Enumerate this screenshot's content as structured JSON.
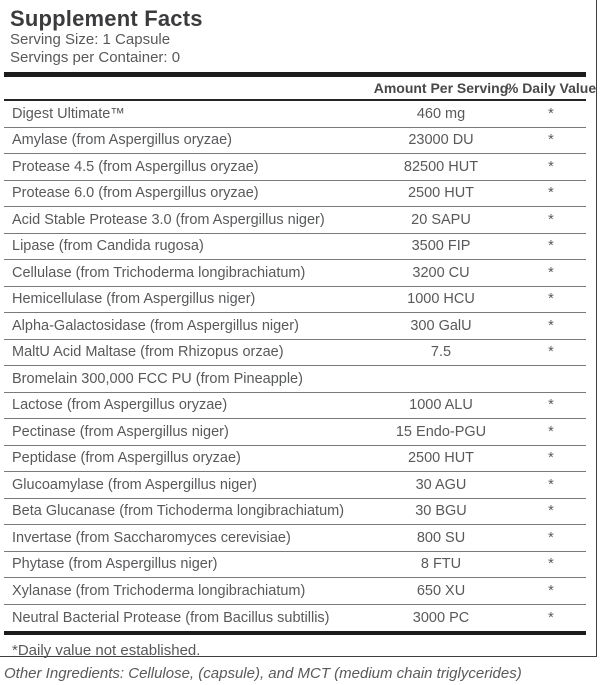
{
  "label": {
    "title": "Supplement Facts",
    "serving_size": "Serving Size: 1 Capsule",
    "servings_per_container": "Servings per Container: 0",
    "columns": {
      "amount_header": "Amount Per Serving",
      "daily_value_header": "% Daily Value"
    },
    "rows": [
      {
        "name": "Digest Ultimate™",
        "amount": "460 mg",
        "dv": "*"
      },
      {
        "name": "Amylase (from Aspergillus oryzae)",
        "amount": "23000 DU",
        "dv": "*"
      },
      {
        "name": "Protease 4.5 (from Aspergillus oryzae)",
        "amount": "82500 HUT",
        "dv": "*"
      },
      {
        "name": "Protease 6.0 (from Aspergillus oryzae)",
        "amount": "2500 HUT",
        "dv": "*"
      },
      {
        "name": "Acid Stable Protease 3.0 (from Aspergillus niger)",
        "amount": "20 SAPU",
        "dv": "*"
      },
      {
        "name": "Lipase (from Candida rugosa)",
        "amount": "3500 FIP",
        "dv": "*"
      },
      {
        "name": "Cellulase (from Trichoderma longibrachiatum)",
        "amount": "3200 CU",
        "dv": "*"
      },
      {
        "name": "Hemicellulase (from Aspergillus niger)",
        "amount": "1000 HCU",
        "dv": "*"
      },
      {
        "name": "Alpha-Galactosidase (from Aspergillus niger)",
        "amount": "300 GalU",
        "dv": "*"
      },
      {
        "name": "MaltU Acid Maltase (from Rhizopus orzae)",
        "amount": "7.5",
        "dv": "*"
      },
      {
        "name": "Bromelain 300,000 FCC PU (from Pineapple)",
        "amount": "",
        "dv": ""
      },
      {
        "name": "Lactose (from Aspergillus oryzae)",
        "amount": "1000 ALU",
        "dv": "*"
      },
      {
        "name": "Pectinase (from Aspergillus niger)",
        "amount": "15 Endo-PGU",
        "dv": "*"
      },
      {
        "name": "Peptidase (from Aspergillus oryzae)",
        "amount": "2500 HUT",
        "dv": "*"
      },
      {
        "name": "Glucoamylase (from Aspergillus niger)",
        "amount": "30 AGU",
        "dv": "*"
      },
      {
        "name": "Beta Glucanase (from Tichoderma longibrachiatum)",
        "amount": "30 BGU",
        "dv": "*"
      },
      {
        "name": "Invertase (from Saccharomyces cerevisiae)",
        "amount": "800 SU",
        "dv": "*"
      },
      {
        "name": "Phytase (from Aspergillus niger)",
        "amount": "8 FTU",
        "dv": "*"
      },
      {
        "name": "Xylanase (from Trichoderma longibrachiatum)",
        "amount": "650 XU",
        "dv": "*"
      },
      {
        "name": "Neutral Bacterial Protease (from Bacillus subtillis)",
        "amount": "3000 PC",
        "dv": "*"
      }
    ],
    "footnote": "*Daily value not established.",
    "other_ingredients": "Other Ingredients: Cellulose, (capsule), and MCT (medium chain triglycerides)"
  },
  "colors": {
    "text": "#58595b",
    "title": "#3b3b3d",
    "thick_bar": "#1c1c1c",
    "row_separator": "#7a7a7a",
    "box_border": "#3e3e40",
    "background": "#ffffff"
  }
}
